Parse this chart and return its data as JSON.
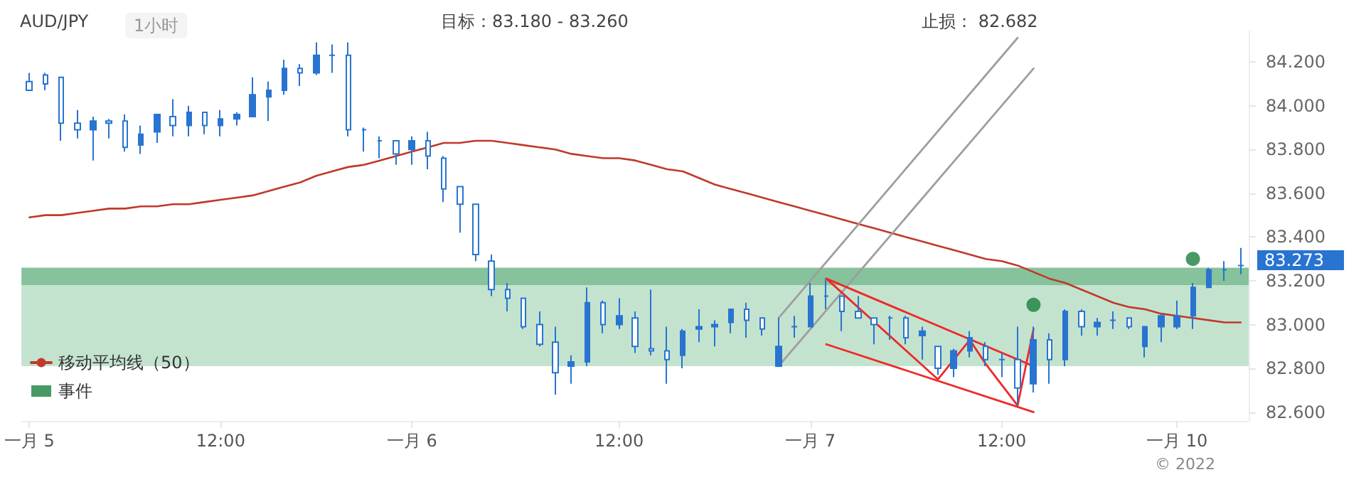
{
  "chart_data": {
    "type": "candlestick",
    "color": "#2874d0",
    "annotations": [
      "AUD/JPY",
      "1小时",
      "目标：83.180 - 83.260",
      "止损： 82.682",
      "© 2022",
      "83.273"
    ],
    "categories": [
      "一月 5",
      null,
      null,
      null,
      null,
      null,
      null,
      null,
      null,
      null,
      null,
      null,
      "12:00",
      null,
      null,
      null,
      null,
      null,
      null,
      null,
      null,
      null,
      null,
      null,
      "一月 6",
      null,
      null,
      null,
      null,
      null,
      null,
      null,
      null,
      null,
      null,
      null,
      null,
      "12:00",
      null,
      null,
      null,
      null,
      null,
      null,
      null,
      null,
      null,
      null,
      null,
      "一月 7",
      null,
      null,
      null,
      null,
      null,
      null,
      null,
      null,
      null,
      null,
      null,
      "12:00",
      null,
      null,
      null,
      null,
      null,
      null,
      null,
      null,
      null,
      null,
      "一月 10",
      null,
      null,
      null,
      null
    ],
    "ohlc": [
      [
        84.11,
        84.15,
        84.07,
        84.07
      ],
      [
        84.14,
        84.15,
        84.07,
        84.1
      ],
      [
        84.13,
        84.13,
        83.84,
        83.92
      ],
      [
        83.92,
        83.98,
        83.85,
        83.89
      ],
      [
        83.89,
        83.95,
        83.75,
        83.93
      ],
      [
        83.93,
        83.94,
        83.85,
        83.92
      ],
      [
        83.93,
        83.96,
        83.79,
        83.81
      ],
      [
        83.82,
        83.91,
        83.78,
        83.87
      ],
      [
        83.88,
        83.96,
        83.83,
        83.96
      ],
      [
        83.95,
        84.03,
        83.86,
        83.91
      ],
      [
        83.91,
        84.0,
        83.86,
        83.97
      ],
      [
        83.97,
        83.97,
        83.87,
        83.91
      ],
      [
        83.91,
        83.98,
        83.86,
        83.94
      ],
      [
        83.94,
        83.97,
        83.91,
        83.96
      ],
      [
        83.95,
        84.13,
        83.95,
        84.05
      ],
      [
        84.04,
        84.11,
        83.93,
        84.07
      ],
      [
        84.07,
        84.21,
        84.05,
        84.17
      ],
      [
        84.17,
        84.19,
        84.09,
        84.15
      ],
      [
        84.15,
        84.29,
        84.14,
        84.23
      ],
      [
        84.23,
        84.28,
        84.15,
        84.23
      ],
      [
        84.23,
        84.29,
        83.86,
        83.89
      ],
      [
        83.89,
        83.9,
        83.79,
        83.89
      ],
      [
        83.84,
        83.86,
        83.76,
        83.84
      ],
      [
        83.84,
        83.84,
        83.73,
        83.78
      ],
      [
        83.8,
        83.86,
        83.73,
        83.84
      ],
      [
        83.84,
        83.88,
        83.71,
        83.77
      ],
      [
        83.76,
        83.77,
        83.56,
        83.62
      ],
      [
        83.63,
        83.63,
        83.42,
        83.55
      ],
      [
        83.55,
        83.55,
        83.29,
        83.32
      ],
      [
        83.29,
        83.32,
        83.13,
        83.16
      ],
      [
        83.16,
        83.19,
        83.06,
        83.12
      ],
      [
        83.12,
        83.12,
        82.98,
        82.99
      ],
      [
        83.0,
        83.06,
        82.9,
        82.91
      ],
      [
        82.92,
        82.99,
        82.68,
        82.78
      ],
      [
        82.81,
        82.86,
        82.73,
        82.83
      ],
      [
        82.83,
        83.17,
        82.81,
        83.1
      ],
      [
        83.1,
        83.11,
        82.96,
        83.0
      ],
      [
        83.0,
        83.12,
        82.98,
        83.04
      ],
      [
        83.03,
        83.06,
        82.87,
        82.9
      ],
      [
        82.89,
        83.16,
        82.86,
        82.88
      ],
      [
        82.88,
        82.99,
        82.73,
        82.84
      ],
      [
        82.86,
        82.98,
        82.8,
        82.97
      ],
      [
        82.98,
        83.07,
        82.92,
        82.99
      ],
      [
        82.99,
        83.02,
        82.9,
        83.0
      ],
      [
        83.01,
        83.07,
        82.96,
        83.07
      ],
      [
        83.07,
        83.1,
        82.94,
        83.02
      ],
      [
        83.03,
        83.03,
        82.95,
        82.98
      ],
      [
        82.81,
        83.03,
        82.81,
        82.9
      ],
      [
        82.99,
        83.04,
        82.94,
        82.99
      ],
      [
        82.99,
        83.19,
        82.99,
        83.13
      ],
      [
        83.13,
        83.21,
        83.07,
        83.13
      ],
      [
        83.13,
        83.13,
        82.97,
        83.06
      ],
      [
        83.06,
        83.13,
        83.03,
        83.03
      ],
      [
        83.03,
        83.03,
        82.91,
        83.0
      ],
      [
        83.03,
        83.04,
        82.93,
        83.03
      ],
      [
        83.03,
        83.04,
        82.91,
        82.94
      ],
      [
        82.95,
        82.99,
        82.84,
        82.97
      ],
      [
        82.9,
        82.9,
        82.77,
        82.8
      ],
      [
        82.8,
        82.89,
        82.76,
        82.88
      ],
      [
        82.88,
        82.97,
        82.85,
        82.94
      ],
      [
        82.9,
        82.92,
        82.81,
        82.84
      ],
      [
        82.84,
        82.87,
        82.76,
        82.84
      ],
      [
        82.84,
        82.99,
        82.63,
        82.71
      ],
      [
        82.73,
        82.99,
        82.69,
        82.93
      ],
      [
        82.93,
        82.96,
        82.73,
        82.84
      ],
      [
        82.84,
        83.07,
        82.81,
        83.06
      ],
      [
        83.06,
        83.07,
        82.95,
        82.99
      ],
      [
        82.99,
        83.03,
        82.95,
        83.01
      ],
      [
        83.02,
        83.06,
        82.98,
        83.02
      ],
      [
        83.03,
        83.03,
        82.98,
        82.99
      ],
      [
        82.9,
        82.99,
        82.85,
        82.99
      ],
      [
        82.99,
        83.05,
        82.92,
        83.04
      ],
      [
        82.99,
        83.11,
        82.98,
        83.04
      ],
      [
        83.04,
        83.19,
        82.98,
        83.17
      ],
      [
        83.17,
        83.26,
        83.17,
        83.25
      ],
      [
        83.25,
        83.29,
        83.2,
        83.25
      ],
      [
        83.27,
        83.35,
        83.23,
        83.27
      ]
    ],
    "series": [
      {
        "type": "line",
        "name": "移动平均线（50）",
        "color": "#c0392b",
        "line_style": "solid",
        "values": [
          83.49,
          83.5,
          83.5,
          83.51,
          83.52,
          83.53,
          83.53,
          83.54,
          83.54,
          83.55,
          83.55,
          83.56,
          83.57,
          83.58,
          83.59,
          83.61,
          83.63,
          83.65,
          83.68,
          83.7,
          83.72,
          83.73,
          83.75,
          83.77,
          83.79,
          83.81,
          83.83,
          83.83,
          83.84,
          83.84,
          83.83,
          83.82,
          83.81,
          83.8,
          83.78,
          83.77,
          83.76,
          83.76,
          83.75,
          83.73,
          83.71,
          83.7,
          83.67,
          83.64,
          83.62,
          83.6,
          83.58,
          83.56,
          83.54,
          83.52,
          83.5,
          83.48,
          83.46,
          83.44,
          83.42,
          83.4,
          83.38,
          83.36,
          83.34,
          83.32,
          83.3,
          83.29,
          83.27,
          83.24,
          83.21,
          83.19,
          83.16,
          83.13,
          83.1,
          83.08,
          83.07,
          83.05,
          83.04,
          83.03,
          83.02,
          83.01,
          83.01
        ]
      },
      {
        "type": "scatter",
        "name": "事件",
        "color": "#1a7f3c",
        "marker": "circle",
        "values": [
          null,
          null,
          null,
          null,
          null,
          null,
          null,
          null,
          null,
          null,
          null,
          null,
          null,
          null,
          null,
          null,
          null,
          null,
          null,
          null,
          null,
          null,
          null,
          null,
          null,
          null,
          null,
          null,
          null,
          null,
          null,
          null,
          null,
          null,
          null,
          null,
          null,
          null,
          null,
          null,
          null,
          null,
          null,
          null,
          null,
          null,
          null,
          null,
          null,
          null,
          null,
          null,
          null,
          null,
          null,
          null,
          null,
          null,
          null,
          null,
          null,
          null,
          null,
          83.09,
          null,
          null,
          null,
          null,
          null,
          null,
          null,
          null,
          null,
          83.3,
          null,
          null,
          null
        ]
      },
      {
        "type": "line",
        "color": "#9e9e9e",
        "line_style": "solid",
        "values": [
          null,
          null,
          null,
          null,
          null,
          null,
          null,
          null,
          null,
          null,
          null,
          null,
          null,
          null,
          null,
          null,
          null,
          null,
          null,
          null,
          null,
          null,
          null,
          null,
          null,
          null,
          null,
          null,
          null,
          null,
          null,
          null,
          null,
          null,
          null,
          null,
          null,
          null,
          null,
          null,
          null,
          null,
          null,
          null,
          null,
          null,
          null,
          83.03,
          null,
          null,
          null,
          null,
          null,
          null,
          null,
          null,
          null,
          null,
          null,
          null,
          null,
          null,
          84.31,
          null,
          null,
          null,
          null,
          null,
          null,
          null,
          null,
          null,
          null,
          null,
          null,
          null,
          null
        ]
      },
      {
        "type": "line",
        "color": "#9e9e9e",
        "line_style": "solid",
        "values": [
          null,
          null,
          null,
          null,
          null,
          null,
          null,
          null,
          null,
          null,
          null,
          null,
          null,
          null,
          null,
          null,
          null,
          null,
          null,
          null,
          null,
          null,
          null,
          null,
          null,
          null,
          null,
          null,
          null,
          null,
          null,
          null,
          null,
          null,
          null,
          null,
          null,
          null,
          null,
          null,
          null,
          null,
          null,
          null,
          null,
          null,
          null,
          82.81,
          null,
          null,
          null,
          null,
          null,
          null,
          null,
          null,
          null,
          null,
          null,
          null,
          null,
          null,
          null,
          84.17,
          null,
          null,
          null,
          null,
          null,
          null,
          null,
          null,
          null,
          null,
          null,
          null,
          null
        ]
      },
      {
        "type": "line",
        "color": "#f02828",
        "line_style": "solid",
        "values": [
          null,
          null,
          null,
          null,
          null,
          null,
          null,
          null,
          null,
          null,
          null,
          null,
          null,
          null,
          null,
          null,
          null,
          null,
          null,
          null,
          null,
          null,
          null,
          null,
          null,
          null,
          null,
          null,
          null,
          null,
          null,
          null,
          null,
          null,
          null,
          null,
          null,
          null,
          null,
          null,
          null,
          null,
          null,
          null,
          null,
          null,
          null,
          null,
          null,
          null,
          83.21,
          null,
          null,
          null,
          null,
          null,
          null,
          null,
          null,
          null,
          null,
          null,
          null,
          82.81,
          null,
          null,
          null,
          null,
          null,
          null,
          null,
          null,
          null,
          null,
          null,
          null,
          null
        ]
      },
      {
        "type": "line",
        "color": "#f02828",
        "line_style": "solid",
        "values": [
          null,
          null,
          null,
          null,
          null,
          null,
          null,
          null,
          null,
          null,
          null,
          null,
          null,
          null,
          null,
          null,
          null,
          null,
          null,
          null,
          null,
          null,
          null,
          null,
          null,
          null,
          null,
          null,
          null,
          null,
          null,
          null,
          null,
          null,
          null,
          null,
          null,
          null,
          null,
          null,
          null,
          null,
          null,
          null,
          null,
          null,
          null,
          null,
          null,
          null,
          82.91,
          null,
          null,
          null,
          null,
          null,
          null,
          null,
          null,
          null,
          null,
          null,
          null,
          82.6,
          null,
          null,
          null,
          null,
          null,
          null,
          null,
          null,
          null,
          null,
          null,
          null,
          null
        ]
      },
      {
        "type": "line",
        "color": "#f02828",
        "line_style": "solid",
        "values": [
          null,
          null,
          null,
          null,
          null,
          null,
          null,
          null,
          null,
          null,
          null,
          null,
          null,
          null,
          null,
          null,
          null,
          null,
          null,
          null,
          null,
          null,
          null,
          null,
          null,
          null,
          null,
          null,
          null,
          null,
          null,
          null,
          null,
          null,
          null,
          null,
          null,
          null,
          null,
          null,
          null,
          null,
          null,
          null,
          null,
          null,
          null,
          null,
          null,
          null,
          83.21,
          null,
          null,
          null,
          null,
          null,
          null,
          82.75,
          null,
          82.93,
          82.82,
          null,
          82.63,
          82.98,
          null,
          null,
          null,
          null,
          null,
          null,
          null,
          null,
          null,
          null,
          null,
          null,
          null
        ]
      }
    ],
    "bands": [
      {
        "axis": "y",
        "from": 83.18,
        "to": 83.26,
        "color": "#86c29c"
      },
      {
        "axis": "y",
        "from": 82.81,
        "to": 83.18,
        "color": "#c3e3cf"
      }
    ],
    "ylim": [
      82.56,
      84.34
    ],
    "yticks": [
      {
        "value": 82.6,
        "label": "82.600"
      },
      {
        "value": 82.8,
        "label": "82.800"
      },
      {
        "value": 83.0,
        "label": "83.000"
      },
      {
        "value": 83.2,
        "label": "83.200"
      },
      {
        "value": 83.4,
        "label": "83.400"
      },
      {
        "value": 83.6,
        "label": "83.600"
      },
      {
        "value": 83.8,
        "label": "83.800"
      },
      {
        "value": 84.0,
        "label": "84.000"
      },
      {
        "value": 84.2,
        "label": "84.200"
      }
    ],
    "grid": false,
    "legend": "bottom left"
  }
}
